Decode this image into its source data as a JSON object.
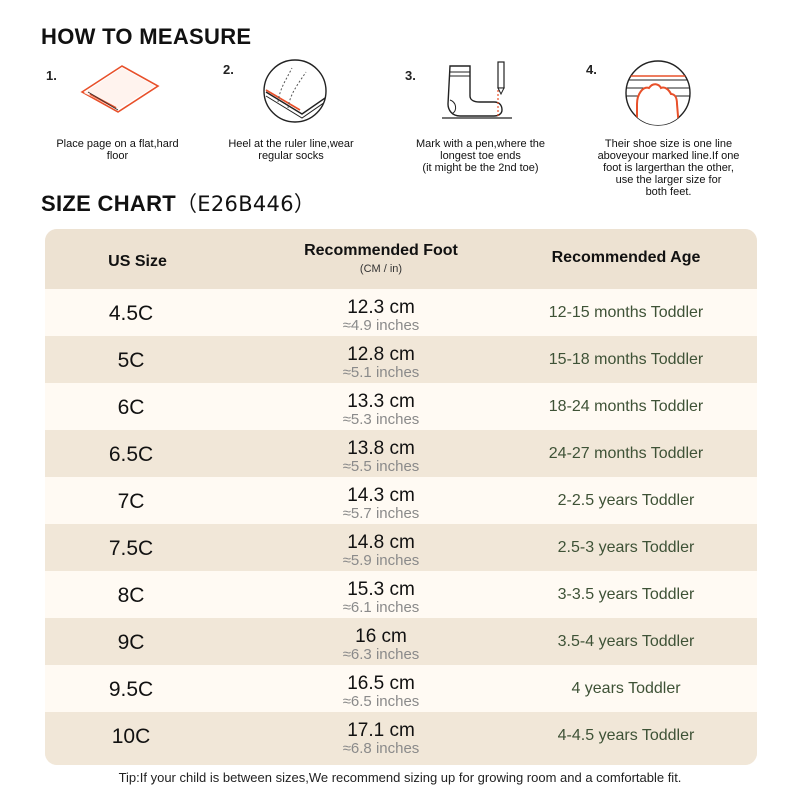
{
  "measure": {
    "title": "HOW TO MEASURE",
    "steps": [
      {
        "num": "1.",
        "icon": "paper-on-floor-icon",
        "text": "Place page on a flat,hard\nfloor"
      },
      {
        "num": "2.",
        "icon": "heel-on-ruler-icon",
        "text": "Heel at the ruler line,wear\nregular socks"
      },
      {
        "num": "3.",
        "icon": "sock-and-pen-icon",
        "text": "Mark with a pen,where the\nlongest toe ends\n(it might be the 2nd toe)"
      },
      {
        "num": "4.",
        "icon": "toe-line-icon",
        "text": "Their shoe size is one line\naboveyour marked line.If one\nfoot is largerthan the other,\nuse the larger size for\nboth feet."
      }
    ]
  },
  "chart": {
    "title": "SIZE CHART",
    "code": "（E26B446）",
    "headers": {
      "size": "US Size",
      "foot": "Recommended Foot",
      "foot_sub": "(CM / in)",
      "age": "Recommended Age"
    },
    "rows": [
      {
        "size": "4.5C",
        "cm": "12.3 cm",
        "in": "≈4.9 inches",
        "age": "12-15 months Toddler"
      },
      {
        "size": "5C",
        "cm": "12.8 cm",
        "in": "≈5.1 inches",
        "age": "15-18 months Toddler"
      },
      {
        "size": "6C",
        "cm": "13.3 cm",
        "in": "≈5.3 inches",
        "age": "18-24 months Toddler"
      },
      {
        "size": "6.5C",
        "cm": "13.8 cm",
        "in": "≈5.5 inches",
        "age": "24-27 months Toddler"
      },
      {
        "size": "7C",
        "cm": "14.3 cm",
        "in": "≈5.7 inches",
        "age": "2-2.5 years Toddler"
      },
      {
        "size": "7.5C",
        "cm": "14.8 cm",
        "in": "≈5.9 inches",
        "age": "2.5-3 years Toddler"
      },
      {
        "size": "8C",
        "cm": "15.3 cm",
        "in": "≈6.1 inches",
        "age": "3-3.5 years Toddler"
      },
      {
        "size": "9C",
        "cm": "16 cm",
        "in": "≈6.3 inches",
        "age": "3.5-4 years Toddler"
      },
      {
        "size": "9.5C",
        "cm": "16.5 cm",
        "in": "≈6.5 inches",
        "age": "4 years Toddler"
      },
      {
        "size": "10C",
        "cm": "17.1 cm",
        "in": "≈6.8 inches",
        "age": "4-4.5 years Toddler"
      }
    ]
  },
  "tip": "Tip:If your child is between sizes,We recommend sizing up for growing room and a comfortable fit.",
  "colors": {
    "accent_orange": "#e8502a",
    "header_bg": "#ede2d2",
    "row_light": "#fffaf3",
    "row_dark": "#f1e7d8",
    "age_text": "#3e5236"
  }
}
